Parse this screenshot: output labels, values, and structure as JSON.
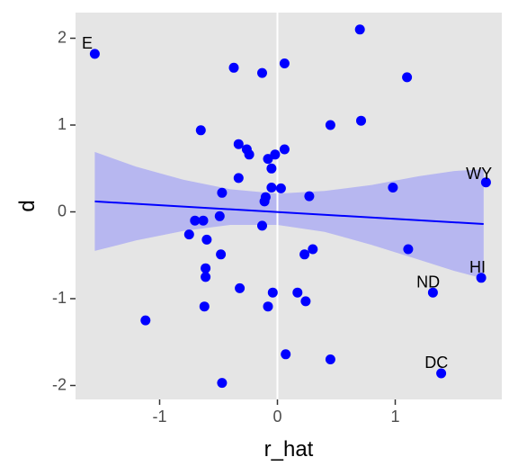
{
  "chart_data": {
    "type": "scatter",
    "title": "",
    "xlabel": "r_hat",
    "ylabel": "d",
    "xlim": [
      -1.65,
      1.82
    ],
    "ylim": [
      -2.2,
      2.25
    ],
    "x_ticks": [
      -1,
      0,
      1
    ],
    "x_tick_labels": [
      "-1",
      "0",
      "1"
    ],
    "y_ticks": [
      -2,
      -1,
      0,
      1,
      2
    ],
    "y_tick_labels": [
      "-2",
      "-1",
      "0",
      "1",
      "2"
    ],
    "grid": false,
    "background": "#e5e5e5",
    "point_color": "#0000ff",
    "fit_line_color": "#0000ff",
    "ribbon_color": "#b7b7f0",
    "vline_x": 0,
    "vline_color": "#ffffff",
    "fit": {
      "x": [
        -1.55,
        1.75
      ],
      "y": [
        0.12,
        -0.14
      ]
    },
    "ribbon": {
      "x": [
        -1.55,
        -1.2,
        -0.8,
        -0.4,
        0.0,
        0.4,
        0.8,
        1.2,
        1.5,
        1.75
      ],
      "upper": [
        0.69,
        0.52,
        0.37,
        0.26,
        0.21,
        0.24,
        0.31,
        0.41,
        0.47,
        0.49
      ],
      "lower": [
        -0.45,
        -0.33,
        -0.22,
        -0.15,
        -0.15,
        -0.23,
        -0.38,
        -0.55,
        -0.68,
        -0.77
      ]
    },
    "points": [
      {
        "x": -1.55,
        "y": 1.82
      },
      {
        "x": -1.12,
        "y": -1.25
      },
      {
        "x": -0.75,
        "y": -0.26
      },
      {
        "x": -0.7,
        "y": -0.1
      },
      {
        "x": -0.65,
        "y": 0.94
      },
      {
        "x": -0.63,
        "y": -0.1
      },
      {
        "x": -0.62,
        "y": -1.09
      },
      {
        "x": -0.61,
        "y": -0.75
      },
      {
        "x": -0.61,
        "y": -0.65
      },
      {
        "x": -0.6,
        "y": -0.32
      },
      {
        "x": -0.49,
        "y": -0.05
      },
      {
        "x": -0.48,
        "y": -0.49
      },
      {
        "x": -0.47,
        "y": 0.22
      },
      {
        "x": -0.47,
        "y": -1.97
      },
      {
        "x": -0.37,
        "y": 1.66
      },
      {
        "x": -0.33,
        "y": 0.78
      },
      {
        "x": -0.33,
        "y": 0.39
      },
      {
        "x": -0.32,
        "y": -0.88
      },
      {
        "x": -0.26,
        "y": 0.72
      },
      {
        "x": -0.24,
        "y": 0.66
      },
      {
        "x": -0.13,
        "y": 1.6
      },
      {
        "x": -0.13,
        "y": -0.16
      },
      {
        "x": -0.11,
        "y": 0.12
      },
      {
        "x": -0.1,
        "y": 0.17
      },
      {
        "x": -0.08,
        "y": 0.61
      },
      {
        "x": -0.08,
        "y": -1.09
      },
      {
        "x": -0.05,
        "y": 0.5
      },
      {
        "x": -0.05,
        "y": 0.28
      },
      {
        "x": -0.04,
        "y": -0.93
      },
      {
        "x": -0.02,
        "y": 0.66
      },
      {
        "x": 0.03,
        "y": 0.27
      },
      {
        "x": 0.06,
        "y": 0.72
      },
      {
        "x": 0.06,
        "y": 1.71
      },
      {
        "x": 0.07,
        "y": -1.64
      },
      {
        "x": 0.17,
        "y": -0.93
      },
      {
        "x": 0.23,
        "y": -0.49
      },
      {
        "x": 0.24,
        "y": -1.03
      },
      {
        "x": 0.27,
        "y": 0.18
      },
      {
        "x": 0.3,
        "y": -0.43
      },
      {
        "x": 0.45,
        "y": 1.0
      },
      {
        "x": 0.45,
        "y": -1.7
      },
      {
        "x": 0.7,
        "y": 2.1
      },
      {
        "x": 0.71,
        "y": 1.05
      },
      {
        "x": 0.98,
        "y": 0.28
      },
      {
        "x": 1.1,
        "y": 1.55
      },
      {
        "x": 1.11,
        "y": -0.43
      },
      {
        "x": 1.32,
        "y": -0.93,
        "label": "ND"
      },
      {
        "x": 1.39,
        "y": -1.86,
        "label": "DC"
      },
      {
        "x": 1.73,
        "y": -0.76,
        "label": "HI"
      },
      {
        "x": 1.77,
        "y": 0.34,
        "label": "WY"
      }
    ],
    "annotations": [
      {
        "text": "E",
        "x": -1.66,
        "y": 1.93
      },
      {
        "text": "WY",
        "x": 1.6,
        "y": 0.43
      },
      {
        "text": "HI",
        "x": 1.63,
        "y": -0.65
      },
      {
        "text": "ND",
        "x": 1.18,
        "y": -0.82
      },
      {
        "text": "DC",
        "x": 1.25,
        "y": -1.75
      }
    ]
  }
}
